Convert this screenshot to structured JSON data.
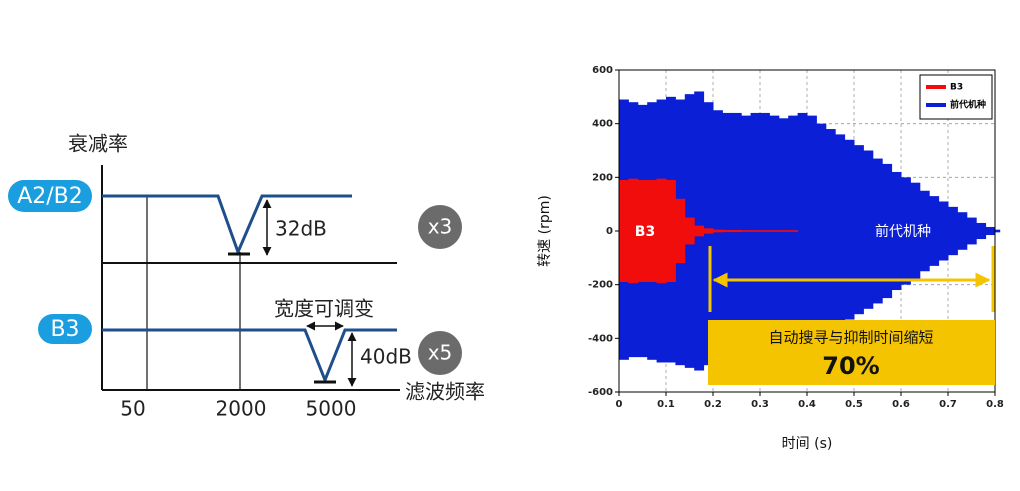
{
  "diagram": {
    "y_label": "衰减率",
    "rows": [
      {
        "label": "A2/B2",
        "depth": "32dB",
        "multiplier": "x3"
      },
      {
        "label": "B3",
        "depth": "40dB",
        "multiplier": "x5",
        "note": "宽度可调变"
      }
    ],
    "x_label": "滤波频率",
    "x_ticks": [
      "50",
      "2000",
      "5000"
    ]
  },
  "chart_data": {
    "type": "band",
    "x_label": "时间 (s)",
    "y_label": "转速 (rpm)",
    "x": [
      0,
      0.02,
      0.04,
      0.06,
      0.08,
      0.1,
      0.12,
      0.14,
      0.16,
      0.18,
      0.2,
      0.22,
      0.24,
      0.26,
      0.28,
      0.3,
      0.32,
      0.34,
      0.36,
      0.38,
      0.4,
      0.42,
      0.44,
      0.46,
      0.48,
      0.5,
      0.52,
      0.54,
      0.56,
      0.58,
      0.6,
      0.62,
      0.64,
      0.66,
      0.68,
      0.7,
      0.72,
      0.74,
      0.76,
      0.78,
      0.8
    ],
    "series": [
      {
        "name": "前代机种",
        "color": "#0a1fd6",
        "high": [
          490,
          480,
          470,
          480,
          490,
          500,
          490,
          510,
          520,
          480,
          450,
          440,
          440,
          430,
          440,
          440,
          430,
          420,
          430,
          440,
          430,
          400,
          380,
          360,
          340,
          320,
          300,
          270,
          250,
          220,
          200,
          180,
          150,
          130,
          110,
          90,
          70,
          50,
          30,
          15,
          5
        ],
        "low": [
          -480,
          -470,
          -470,
          -480,
          -490,
          -490,
          -500,
          -510,
          -520,
          -500,
          -470,
          -460,
          -450,
          -440,
          -440,
          -430,
          -430,
          -420,
          -420,
          -420,
          -410,
          -390,
          -370,
          -350,
          -330,
          -310,
          -290,
          -270,
          -250,
          -220,
          -200,
          -180,
          -150,
          -130,
          -110,
          -90,
          -70,
          -50,
          -30,
          -15,
          -5
        ]
      },
      {
        "name": "B3",
        "color": "#f20d0d",
        "high": [
          190,
          195,
          190,
          190,
          195,
          190,
          120,
          50,
          20,
          10,
          5,
          4,
          4,
          3,
          3,
          3,
          3,
          3,
          3,
          null,
          null,
          null,
          null,
          null,
          null,
          null,
          null,
          null,
          null,
          null,
          null,
          null,
          null,
          null,
          null,
          null,
          null,
          null,
          null,
          null,
          null
        ],
        "low": [
          -190,
          -195,
          -190,
          -190,
          -195,
          -190,
          -120,
          -50,
          -20,
          -10,
          -5,
          -4,
          -4,
          -3,
          -3,
          -3,
          -3,
          -3,
          -3,
          null,
          null,
          null,
          null,
          null,
          null,
          null,
          null,
          null,
          null,
          null,
          null,
          null,
          null,
          null,
          null,
          null,
          null,
          null,
          null,
          null,
          null
        ]
      }
    ],
    "xlim": [
      0,
      0.8
    ],
    "xticks": [
      0,
      0.1,
      0.2,
      0.3,
      0.4,
      0.5,
      0.6,
      0.7,
      0.8
    ],
    "ylim": [
      -600,
      600
    ],
    "yticks": [
      -600,
      -400,
      -200,
      0,
      200,
      400,
      600
    ],
    "grid": true,
    "legend": "top-right",
    "annotations": {
      "b3": "B3",
      "previous": "前代机种",
      "reduction": "自动搜寻与抑制时间缩短",
      "percent": "70%"
    }
  }
}
